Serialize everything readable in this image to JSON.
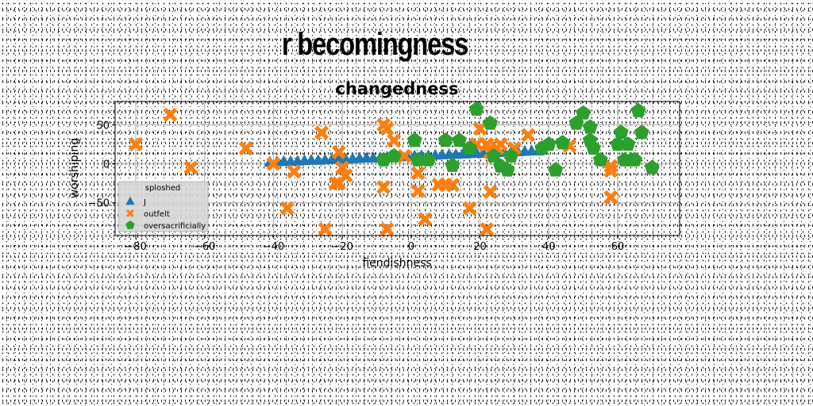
{
  "figure": {
    "suptitle": "r becomingness"
  },
  "chart_data": {
    "type": "scatter",
    "title": "changedness",
    "xlabel": "fiendishness",
    "ylabel": "worshiping",
    "xlim": [
      -86,
      78
    ],
    "ylim": [
      -92,
      80
    ],
    "xticks": [
      -80,
      -60,
      -40,
      -20,
      0,
      20,
      40,
      60
    ],
    "yticks": [
      -50,
      0,
      50
    ],
    "tick_labels_x": [
      "−80",
      "−60",
      "−40",
      "−20",
      "0",
      "20",
      "40",
      "60"
    ],
    "tick_labels_y": [
      "−50",
      "0",
      "50"
    ],
    "grid": true,
    "legend": {
      "title": "sploshed",
      "position": "lower-left"
    },
    "series": [
      {
        "name": "J",
        "marker": "triangle",
        "color": "#1f77b4",
        "x": [
          -41,
          -39,
          -37,
          -35,
          -33,
          -31,
          -29,
          -27,
          -25,
          -23,
          -21,
          -19,
          -17,
          -15,
          -13,
          -11,
          -9,
          -7,
          -5,
          -3,
          -1,
          1,
          3,
          5,
          7,
          9,
          11,
          13,
          15,
          17,
          19,
          21,
          23,
          25,
          27,
          29,
          31,
          33,
          35,
          37
        ],
        "y": [
          2,
          2.5,
          3,
          3,
          3.5,
          4,
          4.5,
          4.5,
          5,
          5.5,
          6,
          6,
          6.5,
          7,
          7.5,
          7.5,
          8,
          8.5,
          9,
          9,
          9.5,
          10,
          10.5,
          10.5,
          11,
          11.5,
          12,
          12,
          12.5,
          13,
          13.5,
          13.5,
          14,
          14.5,
          15,
          15,
          15.5,
          16,
          16.5,
          16.5
        ]
      },
      {
        "name": "outfelt",
        "marker": "x",
        "color": "#ff7f0e",
        "x": [
          -80,
          -70,
          -64,
          -48,
          -40,
          -36,
          -34,
          -26,
          -25,
          -22,
          -21,
          -21,
          -20,
          -19,
          -8,
          -8,
          -7,
          -7,
          -5,
          -2,
          2,
          2,
          4,
          8,
          10,
          12,
          17,
          19,
          20,
          22,
          22,
          23,
          23,
          24,
          25,
          26,
          30,
          34,
          46,
          58,
          58,
          58
        ],
        "y": [
          25,
          63,
          -5,
          20,
          0,
          -57,
          -10,
          40,
          -84,
          -25,
          15,
          -25,
          -5,
          -15,
          -30,
          50,
          -84,
          45,
          30,
          10,
          -35,
          -12,
          -71,
          -27,
          -27,
          -27,
          -57,
          25,
          45,
          -84,
          25,
          -36,
          15,
          10,
          20,
          25,
          20,
          37,
          23,
          -43,
          -3,
          -9
        ]
      },
      {
        "name": "oversacrificially",
        "marker": "pentagon",
        "color": "#2ca02c",
        "x": [
          -8,
          -5,
          1,
          2,
          5,
          10,
          12,
          14,
          17,
          19,
          23,
          24,
          26,
          28,
          29,
          38,
          40,
          42,
          44,
          48,
          50,
          52,
          52,
          53,
          55,
          60,
          61,
          62,
          63,
          64,
          65,
          66,
          67,
          70
        ],
        "y": [
          5,
          10,
          30,
          5,
          5,
          30,
          -2,
          30,
          20,
          70,
          52,
          10,
          -3,
          -8,
          10,
          20,
          25,
          -8,
          27,
          52,
          65,
          30,
          47,
          20,
          5,
          25,
          40,
          5,
          25,
          5,
          5,
          68,
          40,
          -5
        ]
      }
    ]
  }
}
